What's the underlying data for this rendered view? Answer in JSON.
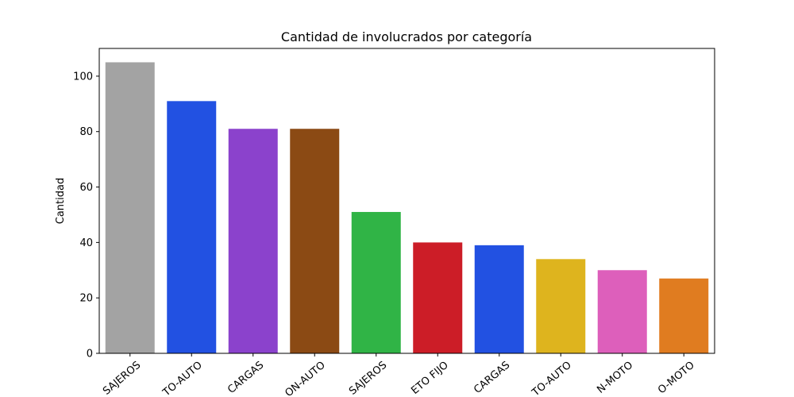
{
  "chart_data": {
    "type": "bar",
    "title": "Cantidad de involucrados por categoría",
    "xlabel": "",
    "ylabel": "Cantidad",
    "ylim": [
      0,
      110
    ],
    "yticks": [
      0,
      20,
      40,
      60,
      80,
      100
    ],
    "grid": false,
    "categories": [
      "SAJEROS",
      "TO-AUTO",
      "CARGAS",
      "ON-AUTO",
      "SAJEROS",
      "ETO FIJO",
      "CARGAS",
      "TO-AUTO",
      "N-MOTO",
      "O-MOTO"
    ],
    "values": [
      105,
      91,
      81,
      81,
      51,
      40,
      39,
      34,
      30,
      27
    ],
    "colors": [
      "#a3a3a3",
      "#2251e2",
      "#8b42cc",
      "#8b4a14",
      "#30b446",
      "#cc1d27",
      "#2251e2",
      "#deb41e",
      "#dd5fbb",
      "#e07c20"
    ]
  }
}
